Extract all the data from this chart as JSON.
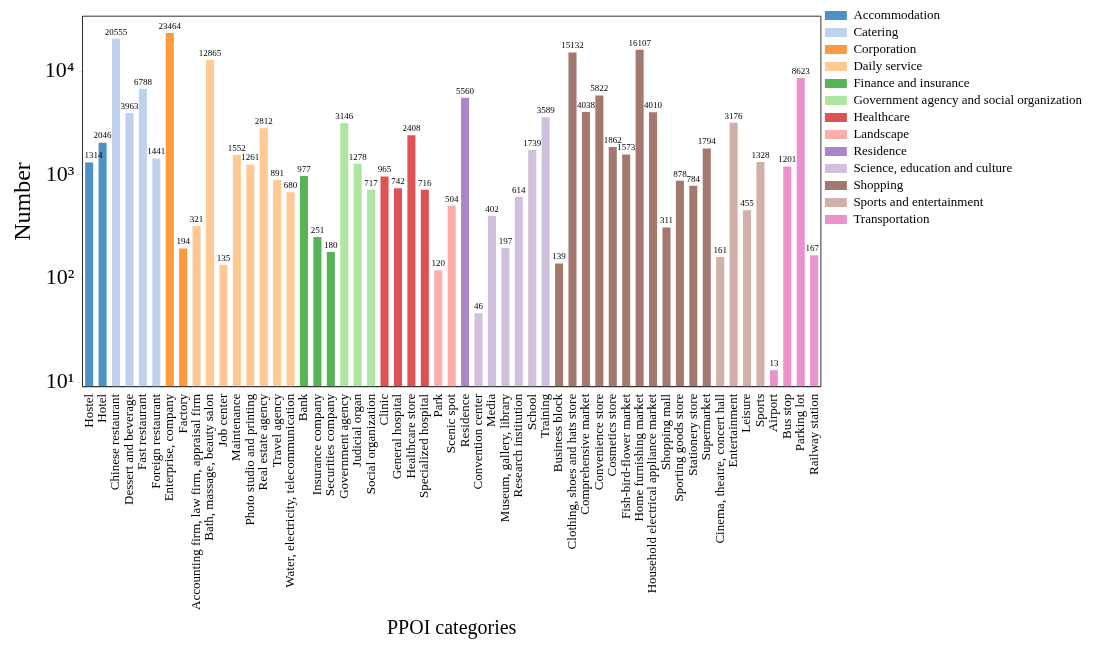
{
  "chart_data": {
    "type": "bar",
    "xlabel": "PPOI categories",
    "ylabel": "Number",
    "log": "y",
    "grid": false,
    "legend": "right",
    "data_labels": true,
    "categories": [
      "Hostel",
      "Hotel",
      "Chinese restaurant",
      "Dessert and beverage",
      "Fast restaurant",
      "Foreign restaurant",
      "Enterprise, company",
      "Factory",
      "Accounting firm, law firm, appraisal firm",
      "Bath, massage, beauty salon",
      "Job center",
      "Maintenance",
      "Photo studio and printing",
      "Real estate agency",
      "Travel agency",
      "Water, electricity, telecommunication",
      "Bank",
      "Insurance company",
      "Securities company",
      "Government agency",
      "Judicial organ",
      "Social organization",
      "Clinic",
      "General hospital",
      "Healthcare store",
      "Specialized hospital",
      "Park",
      "Scenic spot",
      "Residence",
      "Convention center",
      "Media",
      "Museum, gallery, library",
      "Research institution",
      "School",
      "Training",
      "Business block",
      "Clothing, shoes and hats store",
      "Comprehensive market",
      "Convenience store",
      "Cosmetics store",
      "Fish-bird-flower market",
      "Home furnishing market",
      "Household electrical appliance market",
      "Shopping mall",
      "Sporting goods store",
      "Stationery store",
      "Supermarket",
      "Cinema, theatre, concert hall",
      "Entertainment",
      "Leisure",
      "Sports",
      "Airport",
      "Bus stop",
      "Parking lot",
      "Railway station"
    ],
    "ylim": [
      9,
      34000
    ],
    "yticks": [
      {
        "value": 10,
        "label": "10¹"
      },
      {
        "value": 100,
        "label": "10²"
      },
      {
        "value": 1000,
        "label": "10³"
      },
      {
        "value": 10000,
        "label": "10⁴"
      }
    ],
    "series": [
      {
        "name": "Accommodation",
        "color": "#4c92c3",
        "values": [
          1314,
          2046,
          null,
          null,
          null,
          null,
          null,
          null,
          null,
          null,
          null,
          null,
          null,
          null,
          null,
          null,
          null,
          null,
          null,
          null,
          null,
          null,
          null,
          null,
          null,
          null,
          null,
          null,
          null,
          null,
          null,
          null,
          null,
          null,
          null,
          null,
          null,
          null,
          null,
          null,
          null,
          null,
          null,
          null,
          null,
          null,
          null,
          null,
          null,
          null,
          null,
          null,
          null,
          null,
          null
        ]
      },
      {
        "name": "Catering",
        "color": "#bed2ed",
        "values": [
          null,
          null,
          20555,
          3963,
          6788,
          1441,
          null,
          null,
          null,
          null,
          null,
          null,
          null,
          null,
          null,
          null,
          null,
          null,
          null,
          null,
          null,
          null,
          null,
          null,
          null,
          null,
          null,
          null,
          null,
          null,
          null,
          null,
          null,
          null,
          null,
          null,
          null,
          null,
          null,
          null,
          null,
          null,
          null,
          null,
          null,
          null,
          null,
          null,
          null,
          null,
          null,
          null,
          null,
          null,
          null
        ]
      },
      {
        "name": "Corporation",
        "color": "#ff993e",
        "values": [
          null,
          null,
          null,
          null,
          null,
          null,
          23464,
          194,
          null,
          null,
          null,
          null,
          null,
          null,
          null,
          null,
          null,
          null,
          null,
          null,
          null,
          null,
          null,
          null,
          null,
          null,
          null,
          null,
          null,
          null,
          null,
          null,
          null,
          null,
          null,
          null,
          null,
          null,
          null,
          null,
          null,
          null,
          null,
          null,
          null,
          null,
          null,
          null,
          null,
          null,
          null,
          null,
          null,
          null,
          null
        ]
      },
      {
        "name": "Daily service",
        "color": "#ffc993",
        "values": [
          null,
          null,
          null,
          null,
          null,
          null,
          null,
          null,
          321,
          12865,
          135,
          1552,
          1261,
          2812,
          891,
          680,
          null,
          null,
          null,
          null,
          null,
          null,
          null,
          null,
          null,
          null,
          null,
          null,
          null,
          null,
          null,
          null,
          null,
          null,
          null,
          null,
          null,
          null,
          null,
          null,
          null,
          null,
          null,
          null,
          null,
          null,
          null,
          null,
          null,
          null,
          null,
          null,
          null,
          null,
          null
        ]
      },
      {
        "name": "Finance and insurance",
        "color": "#56b356",
        "values": [
          null,
          null,
          null,
          null,
          null,
          null,
          null,
          null,
          null,
          null,
          null,
          null,
          null,
          null,
          null,
          null,
          977,
          251,
          180,
          null,
          null,
          null,
          null,
          null,
          null,
          null,
          null,
          null,
          null,
          null,
          null,
          null,
          null,
          null,
          null,
          null,
          null,
          null,
          null,
          null,
          null,
          null,
          null,
          null,
          null,
          null,
          null,
          null,
          null,
          null,
          null,
          null,
          null,
          null,
          null
        ]
      },
      {
        "name": "Government agency and social organization",
        "color": "#ade5a1",
        "values": [
          null,
          null,
          null,
          null,
          null,
          null,
          null,
          null,
          null,
          null,
          null,
          null,
          null,
          null,
          null,
          null,
          null,
          null,
          null,
          3146,
          1278,
          717,
          null,
          null,
          null,
          null,
          null,
          null,
          null,
          null,
          null,
          null,
          null,
          null,
          null,
          null,
          null,
          null,
          null,
          null,
          null,
          null,
          null,
          null,
          null,
          null,
          null,
          null,
          null,
          null,
          null,
          null,
          null,
          null,
          null
        ]
      },
      {
        "name": "Healthcare",
        "color": "#de5253",
        "values": [
          null,
          null,
          null,
          null,
          null,
          null,
          null,
          null,
          null,
          null,
          null,
          null,
          null,
          null,
          null,
          null,
          null,
          null,
          null,
          null,
          null,
          null,
          965,
          742,
          2408,
          716,
          null,
          null,
          null,
          null,
          null,
          null,
          null,
          null,
          null,
          null,
          null,
          null,
          null,
          null,
          null,
          null,
          null,
          null,
          null,
          null,
          null,
          null,
          null,
          null,
          null,
          null,
          null,
          null,
          null
        ]
      },
      {
        "name": "Landscape",
        "color": "#ffadab",
        "values": [
          null,
          null,
          null,
          null,
          null,
          null,
          null,
          null,
          null,
          null,
          null,
          null,
          null,
          null,
          null,
          null,
          null,
          null,
          null,
          null,
          null,
          null,
          null,
          null,
          null,
          null,
          120,
          504,
          null,
          null,
          null,
          null,
          null,
          null,
          null,
          null,
          null,
          null,
          null,
          null,
          null,
          null,
          null,
          null,
          null,
          null,
          null,
          null,
          null,
          null,
          null,
          null,
          null,
          null,
          null
        ]
      },
      {
        "name": "Residence",
        "color": "#a985ca",
        "values": [
          null,
          null,
          null,
          null,
          null,
          null,
          null,
          null,
          null,
          null,
          null,
          null,
          null,
          null,
          null,
          null,
          null,
          null,
          null,
          null,
          null,
          null,
          null,
          null,
          null,
          null,
          null,
          null,
          5560,
          null,
          null,
          null,
          null,
          null,
          null,
          null,
          null,
          null,
          null,
          null,
          null,
          null,
          null,
          null,
          null,
          null,
          null,
          null,
          null,
          null,
          null,
          null,
          null,
          null,
          null
        ]
      },
      {
        "name": "Science, education and culture",
        "color": "#d1c0dd",
        "values": [
          null,
          null,
          null,
          null,
          null,
          null,
          null,
          null,
          null,
          null,
          null,
          null,
          null,
          null,
          null,
          null,
          null,
          null,
          null,
          null,
          null,
          null,
          null,
          null,
          null,
          null,
          null,
          null,
          null,
          46,
          402,
          197,
          614,
          1739,
          3589,
          null,
          null,
          null,
          null,
          null,
          null,
          null,
          null,
          null,
          null,
          null,
          null,
          null,
          null,
          null,
          null,
          null,
          null,
          null,
          null
        ]
      },
      {
        "name": "Shopping",
        "color": "#a3786f",
        "values": [
          null,
          null,
          null,
          null,
          null,
          null,
          null,
          null,
          null,
          null,
          null,
          null,
          null,
          null,
          null,
          null,
          null,
          null,
          null,
          null,
          null,
          null,
          null,
          null,
          null,
          null,
          null,
          null,
          null,
          null,
          null,
          null,
          null,
          null,
          null,
          139,
          15132,
          4038,
          5822,
          1862,
          1573,
          16107,
          4010,
          311,
          878,
          784,
          1794,
          null,
          null,
          null,
          null,
          null,
          null,
          null,
          null
        ]
      },
      {
        "name": "Sports and entertainment",
        "color": "#d0b0a9",
        "values": [
          null,
          null,
          null,
          null,
          null,
          null,
          null,
          null,
          null,
          null,
          null,
          null,
          null,
          null,
          null,
          null,
          null,
          null,
          null,
          null,
          null,
          null,
          null,
          null,
          null,
          null,
          null,
          null,
          null,
          null,
          null,
          null,
          null,
          null,
          null,
          null,
          null,
          null,
          null,
          null,
          null,
          null,
          null,
          null,
          null,
          null,
          null,
          161,
          3176,
          455,
          1328,
          null,
          null,
          null,
          null
        ]
      },
      {
        "name": "Transportation",
        "color": "#e992ce",
        "values": [
          null,
          null,
          null,
          null,
          null,
          null,
          null,
          null,
          null,
          null,
          null,
          null,
          null,
          null,
          null,
          null,
          null,
          null,
          null,
          null,
          null,
          null,
          null,
          null,
          null,
          null,
          null,
          null,
          null,
          null,
          null,
          null,
          null,
          null,
          null,
          null,
          null,
          null,
          null,
          null,
          null,
          null,
          null,
          null,
          null,
          null,
          null,
          null,
          null,
          null,
          null,
          13,
          1201,
          8623,
          167
        ]
      }
    ]
  }
}
